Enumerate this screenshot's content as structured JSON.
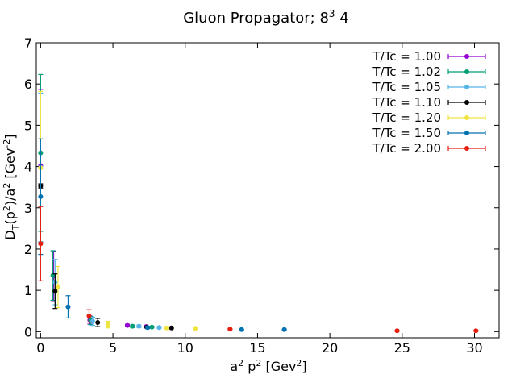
{
  "chart_data": {
    "type": "scatter",
    "title": {
      "main": "Gluon Propagator; 8",
      "sup": "3",
      "rest": " 4"
    },
    "xlabel": {
      "a": "a",
      "a_sup": "2",
      "b": " p",
      "b_sup": "2",
      "c": " [Gev",
      "c_sup": "2",
      "d": "]"
    },
    "ylabel": {
      "a": "D",
      "a_sub": "T",
      "b": "(p",
      "b_sup": "2",
      "c": ")/a",
      "c_sup": "2",
      "d": " [Gev",
      "d_sup": "-2",
      "e": "]"
    },
    "xlim": [
      -0.3,
      31.7
    ],
    "ylim": [
      -0.15,
      7.0
    ],
    "xticks": [
      0,
      5,
      10,
      15,
      20,
      25,
      30
    ],
    "xtick_labels": [
      "0",
      "5",
      "10",
      "15",
      "20",
      "25",
      "30"
    ],
    "yticks": [
      0,
      1,
      2,
      3,
      4,
      5,
      6,
      7
    ],
    "ytick_labels": [
      "0",
      "1",
      "2",
      "3",
      "4",
      "5",
      "6",
      "7"
    ],
    "grid": false,
    "legend_position": "top-right",
    "series": [
      {
        "name": "T/Tc = 1.00",
        "color": "#9400d3",
        "points": [
          {
            "x": 0.0,
            "y": 4.02,
            "err": 1.85
          },
          {
            "x": 0.9,
            "y": 1.35,
            "err": 0.6
          },
          {
            "x": 3.4,
            "y": 0.28,
            "err": 0.1
          },
          {
            "x": 6.0,
            "y": 0.15,
            "err": 0.03
          },
          {
            "x": 7.3,
            "y": 0.12,
            "err": 0.02
          }
        ]
      },
      {
        "name": "T/Tc = 1.02",
        "color": "#009e73",
        "points": [
          {
            "x": 0.0,
            "y": 4.33,
            "err": 1.9
          },
          {
            "x": 0.85,
            "y": 1.36,
            "err": 0.6
          },
          {
            "x": 3.45,
            "y": 0.27,
            "err": 0.1
          },
          {
            "x": 6.35,
            "y": 0.13,
            "err": 0.03
          },
          {
            "x": 7.7,
            "y": 0.11,
            "err": 0.02
          }
        ]
      },
      {
        "name": "T/Tc = 1.05",
        "color": "#56b4e9",
        "points": [
          {
            "x": 0.0,
            "y": 3.98,
            "err": 1.8
          },
          {
            "x": 1.0,
            "y": 1.2,
            "err": 0.55
          },
          {
            "x": 3.6,
            "y": 0.25,
            "err": 0.1
          },
          {
            "x": 6.8,
            "y": 0.13,
            "err": 0.03
          },
          {
            "x": 8.2,
            "y": 0.1,
            "err": 0.02
          }
        ]
      },
      {
        "name": "T/Tc = 1.10",
        "color": "#000000",
        "points": [
          {
            "x": 0.0,
            "y": 3.53,
            "err": 0.05
          },
          {
            "x": 1.0,
            "y": 0.98,
            "err": 0.42
          },
          {
            "x": 3.95,
            "y": 0.22,
            "err": 0.1
          },
          {
            "x": 7.35,
            "y": 0.11,
            "err": 0.02
          },
          {
            "x": 9.05,
            "y": 0.09,
            "err": 0.02
          }
        ]
      },
      {
        "name": "T/Tc = 1.20",
        "color": "#f0e442",
        "points": [
          {
            "x": 0.0,
            "y": 3.97,
            "err": 1.85
          },
          {
            "x": 1.2,
            "y": 1.08,
            "err": 0.5
          },
          {
            "x": 4.65,
            "y": 0.17,
            "err": 0.08
          },
          {
            "x": 8.7,
            "y": 0.09,
            "err": 0.02
          },
          {
            "x": 10.7,
            "y": 0.08,
            "err": 0.02
          }
        ]
      },
      {
        "name": "T/Tc = 1.50",
        "color": "#0072b2",
        "points": [
          {
            "x": 0.0,
            "y": 3.27,
            "err": 1.4
          },
          {
            "x": 1.9,
            "y": 0.6,
            "err": 0.27
          },
          {
            "x": 7.4,
            "y": 0.1,
            "err": 0.03
          },
          {
            "x": 13.9,
            "y": 0.05,
            "err": 0.01
          },
          {
            "x": 16.85,
            "y": 0.05,
            "err": 0.01
          }
        ]
      },
      {
        "name": "T/Tc = 2.00",
        "color": "#e51e10",
        "points": [
          {
            "x": 0.0,
            "y": 2.13,
            "err": 0.9
          },
          {
            "x": 3.35,
            "y": 0.38,
            "err": 0.15
          },
          {
            "x": 13.1,
            "y": 0.06,
            "err": 0.01
          },
          {
            "x": 24.65,
            "y": 0.02,
            "err": 0.01
          },
          {
            "x": 30.1,
            "y": 0.02,
            "err": 0.01
          }
        ]
      }
    ]
  }
}
